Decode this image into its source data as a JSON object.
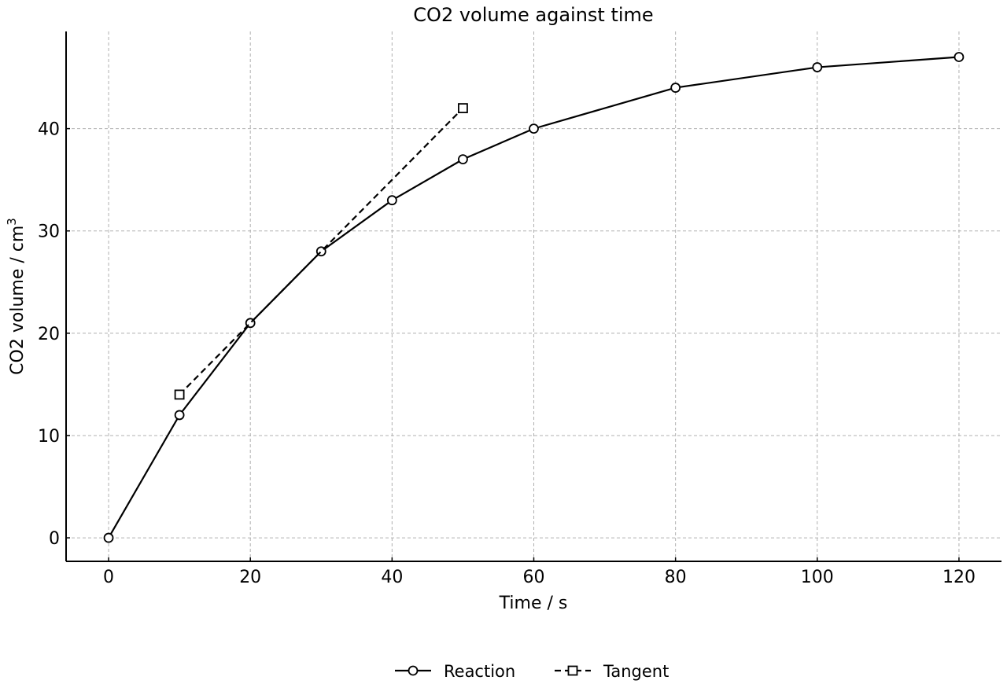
{
  "chart_data": {
    "type": "line",
    "title": "CO2 volume against time",
    "xlabel": "Time / s",
    "ylabel": "CO2 volume / cm",
    "ylabel_superscript": "3",
    "xlim": [
      -6,
      126
    ],
    "ylim": [
      -2.3,
      49.5
    ],
    "xticks": [
      0,
      20,
      40,
      60,
      80,
      100,
      120
    ],
    "yticks": [
      0,
      10,
      20,
      30,
      40
    ],
    "grid": true,
    "legend_position": "bottom-center",
    "series": [
      {
        "name": "Reaction",
        "line_style": "solid",
        "marker": "circle",
        "color": "#000000",
        "x": [
          0,
          10,
          20,
          30,
          40,
          50,
          60,
          80,
          100,
          120
        ],
        "y": [
          0,
          12,
          21,
          28,
          33,
          37,
          40,
          44,
          46,
          47
        ]
      },
      {
        "name": "Tangent",
        "line_style": "dashed",
        "marker": "square",
        "color": "#000000",
        "x": [
          10,
          50
        ],
        "y": [
          14,
          42
        ]
      }
    ]
  }
}
